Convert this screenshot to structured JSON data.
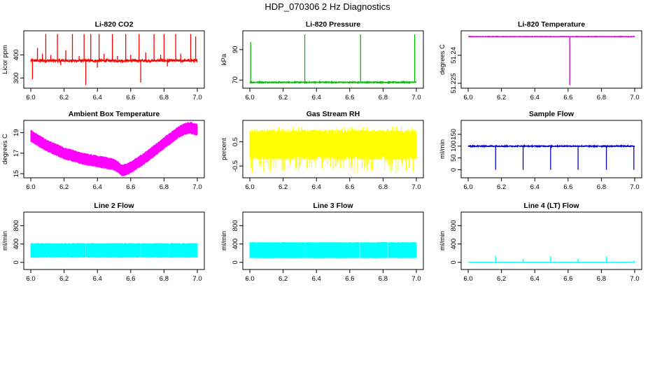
{
  "figure": {
    "title": "HDP_070306 2 Hz Diagnostics"
  },
  "chart_data": [
    {
      "type": "line",
      "title": "Li-820 CO2",
      "xlabel": "",
      "ylabel": "Licor ppm",
      "color": "#ff0000",
      "xlim": [
        6.0,
        7.0
      ],
      "ylim": [
        265,
        495
      ],
      "xticks": [
        "6.0",
        "6.2",
        "6.4",
        "6.6",
        "6.8",
        "7.0"
      ],
      "yticks": [
        300,
        400
      ],
      "baseline": 375,
      "noise": 5,
      "spikes": [
        {
          "x": 6.01,
          "y": 295
        },
        {
          "x": 6.04,
          "y": 430
        },
        {
          "x": 6.07,
          "y": 405
        },
        {
          "x": 6.09,
          "y": 490
        },
        {
          "x": 6.12,
          "y": 400
        },
        {
          "x": 6.16,
          "y": 490
        },
        {
          "x": 6.18,
          "y": 355
        },
        {
          "x": 6.21,
          "y": 420
        },
        {
          "x": 6.25,
          "y": 490
        },
        {
          "x": 6.29,
          "y": 395
        },
        {
          "x": 6.32,
          "y": 490
        },
        {
          "x": 6.33,
          "y": 270
        },
        {
          "x": 6.36,
          "y": 490
        },
        {
          "x": 6.4,
          "y": 345
        },
        {
          "x": 6.41,
          "y": 490
        },
        {
          "x": 6.44,
          "y": 405
        },
        {
          "x": 6.49,
          "y": 490
        },
        {
          "x": 6.52,
          "y": 395
        },
        {
          "x": 6.57,
          "y": 490
        },
        {
          "x": 6.6,
          "y": 400
        },
        {
          "x": 6.65,
          "y": 490
        },
        {
          "x": 6.66,
          "y": 280
        },
        {
          "x": 6.69,
          "y": 410
        },
        {
          "x": 6.74,
          "y": 490
        },
        {
          "x": 6.78,
          "y": 400
        },
        {
          "x": 6.8,
          "y": 490
        },
        {
          "x": 6.82,
          "y": 350
        },
        {
          "x": 6.87,
          "y": 490
        },
        {
          "x": 6.9,
          "y": 405
        },
        {
          "x": 6.96,
          "y": 490
        },
        {
          "x": 6.99,
          "y": 480
        }
      ]
    },
    {
      "type": "line",
      "title": "Li-820 Pressure",
      "xlabel": "",
      "ylabel": "kPa",
      "color": "#00bb00",
      "xlim": [
        6.0,
        7.0
      ],
      "ylim": [
        66,
        101
      ],
      "xticks": [
        "6.0",
        "6.2",
        "6.4",
        "6.6",
        "6.8",
        "7.0"
      ],
      "yticks": [
        70,
        90
      ],
      "baseline": 68.5,
      "noise": 0.3,
      "spikes": [
        {
          "x": 6.005,
          "y": 95
        },
        {
          "x": 6.33,
          "y": 100
        },
        {
          "x": 6.665,
          "y": 100
        },
        {
          "x": 6.99,
          "y": 100
        }
      ]
    },
    {
      "type": "line",
      "title": "Li-820 Temperature",
      "xlabel": "",
      "ylabel": "degrees C",
      "color": "#cc00cc",
      "xlim": [
        6.0,
        7.0
      ],
      "ylim": [
        51.2235,
        51.252
      ],
      "xticks": [
        "6.0",
        "6.2",
        "6.4",
        "6.6",
        "6.8",
        "7.0"
      ],
      "yticks": [
        51.225,
        51.24
      ],
      "baseline": 51.25,
      "noise": 0.0001,
      "spikes": [
        {
          "x": 6.61,
          "y": 51.224
        }
      ]
    },
    {
      "type": "line",
      "title": "Ambient Box Temperature",
      "xlabel": "",
      "ylabel": "degrees C",
      "color": "#ff00ff",
      "xlim": [
        6.0,
        7.0
      ],
      "ylim": [
        14.8,
        20.0
      ],
      "xticks": [
        "6.0",
        "6.2",
        "6.4",
        "6.6",
        "6.8",
        "7.0"
      ],
      "yticks": [
        15,
        17,
        19
      ],
      "band": 0.9,
      "trend": [
        {
          "x": 6.0,
          "y": 18.7
        },
        {
          "x": 6.1,
          "y": 17.7
        },
        {
          "x": 6.2,
          "y": 17.0
        },
        {
          "x": 6.3,
          "y": 16.5
        },
        {
          "x": 6.4,
          "y": 16.2
        },
        {
          "x": 6.5,
          "y": 15.9
        },
        {
          "x": 6.55,
          "y": 15.3
        },
        {
          "x": 6.6,
          "y": 15.6
        },
        {
          "x": 6.7,
          "y": 16.7
        },
        {
          "x": 6.8,
          "y": 18.0
        },
        {
          "x": 6.9,
          "y": 19.2
        },
        {
          "x": 6.95,
          "y": 19.5
        },
        {
          "x": 7.0,
          "y": 19.3
        }
      ]
    },
    {
      "type": "line",
      "title": "Gas Stream RH",
      "xlabel": "",
      "ylabel": "percent",
      "color": "#ffff00",
      "xlim": [
        6.0,
        7.0
      ],
      "ylim": [
        -0.9,
        1.3
      ],
      "xticks": [
        "6.0",
        "6.2",
        "6.4",
        "6.6",
        "6.8",
        "7.0"
      ],
      "yticks": [
        -0.5,
        0.5
      ],
      "band_low": -0.25,
      "band_high": 1.0,
      "dip_min": -0.8
    },
    {
      "type": "line",
      "title": "Sample Flow",
      "xlabel": "",
      "ylabel": "ml/min",
      "color": "#0000cc",
      "xlim": [
        6.0,
        7.0
      ],
      "ylim": [
        -25,
        200
      ],
      "xticks": [
        "6.0",
        "6.2",
        "6.4",
        "6.6",
        "6.8",
        "7.0"
      ],
      "yticks": [
        0,
        50,
        100,
        150
      ],
      "baseline": 100,
      "noise": 2,
      "drops": [
        6.165,
        6.33,
        6.495,
        6.66,
        6.83,
        6.995
      ]
    },
    {
      "type": "line",
      "title": "Line 2 Flow",
      "xlabel": "",
      "ylabel": "ml/min",
      "color": "#00ffff",
      "xlim": [
        6.0,
        7.0
      ],
      "ylim": [
        -110,
        1050
      ],
      "xticks": [
        "6.0",
        "6.2",
        "6.4",
        "6.6",
        "6.8",
        "7.0"
      ],
      "yticks": [
        0,
        400,
        800
      ],
      "band_low": 100,
      "band_high": 420,
      "gaps": [
        6.165,
        6.33,
        6.495,
        6.66,
        6.83
      ]
    },
    {
      "type": "line",
      "title": "Line 3 Flow",
      "xlabel": "",
      "ylabel": "ml/min",
      "color": "#00ffff",
      "xlim": [
        6.0,
        7.0
      ],
      "ylim": [
        -110,
        1050
      ],
      "xticks": [
        "6.0",
        "6.2",
        "6.4",
        "6.6",
        "6.8",
        "7.0"
      ],
      "yticks": [
        0,
        400,
        800
      ],
      "band_low": 90,
      "band_high": 440,
      "gaps": [
        6.165,
        6.33,
        6.495,
        6.66,
        6.83
      ]
    },
    {
      "type": "line",
      "title": "Line 4 (LT) Flow",
      "xlabel": "",
      "ylabel": "ml/min",
      "color": "#00ffff",
      "xlim": [
        6.0,
        7.0
      ],
      "ylim": [
        -110,
        1050
      ],
      "xticks": [
        "6.0",
        "6.2",
        "6.4",
        "6.6",
        "6.8",
        "7.0"
      ],
      "yticks": [
        0,
        400,
        800
      ],
      "baseline": 0,
      "spikes": [
        {
          "x": 6.165,
          "y": 140
        },
        {
          "x": 6.33,
          "y": 75
        },
        {
          "x": 6.495,
          "y": 130
        },
        {
          "x": 6.66,
          "y": 75
        },
        {
          "x": 6.83,
          "y": 130
        },
        {
          "x": 6.995,
          "y": 40
        }
      ]
    }
  ]
}
